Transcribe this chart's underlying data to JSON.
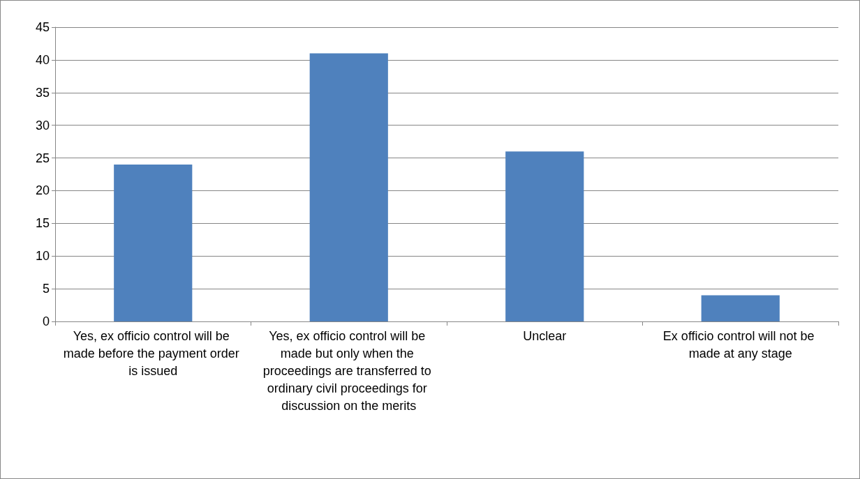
{
  "chart_data": {
    "type": "bar",
    "categories": [
      "Yes, ex officio control will be made before the payment order is issued",
      "Yes, ex officio control will be made but only when the proceedings are transferred to ordinary civil proceedings for discussion on the merits",
      "Unclear",
      "Ex officio control will not be made at any stage"
    ],
    "values": [
      24,
      41,
      26,
      4
    ],
    "color": "#4f81bd",
    "ylim": [
      0,
      45
    ],
    "yticks": [
      0,
      5,
      10,
      15,
      20,
      25,
      30,
      35,
      40,
      45
    ],
    "grid": "y"
  }
}
